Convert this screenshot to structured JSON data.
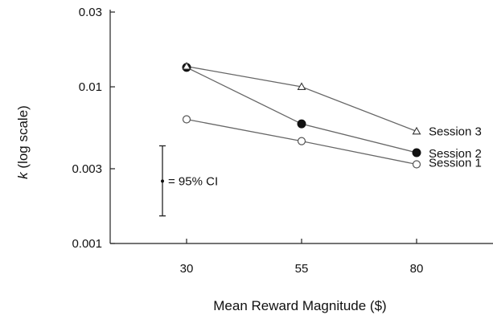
{
  "chart_data": {
    "type": "line",
    "xlabel": "Mean Reward Magnitude ($)",
    "ylabel_italic": "k",
    "ylabel_rest": " (log scale)",
    "y_scale": "log",
    "ylim": [
      0.001,
      0.03
    ],
    "y_ticks": [
      {
        "value": 0.001,
        "label": "0.001"
      },
      {
        "value": 0.003,
        "label": "0.003"
      },
      {
        "value": 0.01,
        "label": "0.01"
      },
      {
        "value": 0.03,
        "label": "0.03"
      }
    ],
    "x": [
      30,
      55,
      80
    ],
    "x_tick_labels": [
      "30",
      "55",
      "80"
    ],
    "series": [
      {
        "name": "Session 1",
        "marker": "open-circle",
        "values": [
          0.0062,
          0.0045,
          0.0032
        ]
      },
      {
        "name": "Session 2",
        "marker": "filled-circle",
        "values": [
          0.0133,
          0.0058,
          0.0038
        ]
      },
      {
        "name": "Session 3",
        "marker": "open-triangle",
        "values": [
          0.0135,
          0.01,
          0.0052
        ]
      }
    ],
    "error_bar": {
      "label": "= 95% CI",
      "center": 0.0025,
      "lower": 0.0015,
      "upper": 0.0042
    },
    "grid": false,
    "line_color": "#666666",
    "marker_color": "#111111"
  }
}
